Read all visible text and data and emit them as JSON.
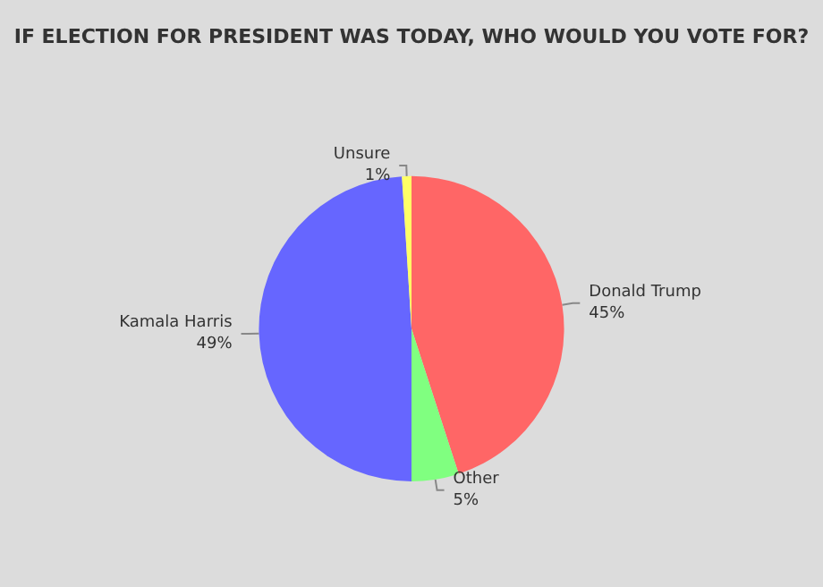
{
  "chart_data": {
    "type": "pie",
    "title": "IF ELECTION FOR PRESIDENT WAS TODAY, WHO WOULD YOU VOTE FOR?",
    "categories": [
      "Donald Trump",
      "Other",
      "Kamala Harris",
      "Unsure"
    ],
    "values": [
      45,
      5,
      49,
      1
    ],
    "value_labels": [
      "45%",
      "5%",
      "49%",
      "1%"
    ],
    "colors": [
      "#ff6666",
      "#80ff80",
      "#6666ff",
      "#ffff66"
    ],
    "legend": false
  }
}
